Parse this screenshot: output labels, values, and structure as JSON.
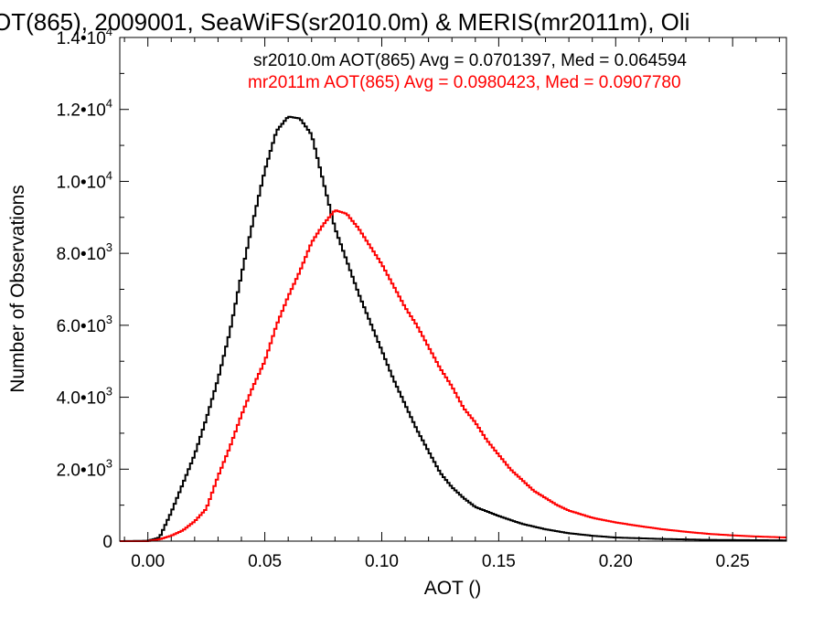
{
  "chart_data": {
    "type": "line",
    "title": "OT(865), 2009001, SeaWiFS(sr2010.0m) & MERIS(mr2011m), Oli",
    "xlabel": "AOT ()",
    "ylabel": "Number of Observations",
    "xlim": [
      -0.012,
      0.273
    ],
    "ylim": [
      0,
      14000
    ],
    "x_ticks": [
      0.0,
      0.05,
      0.1,
      0.15,
      0.2,
      0.25
    ],
    "x_tick_labels": [
      "0.00",
      "0.05",
      "0.10",
      "0.15",
      "0.20",
      "0.25"
    ],
    "y_ticks": [
      0,
      2000,
      4000,
      6000,
      8000,
      10000,
      12000,
      14000
    ],
    "y_tick_labels": [
      {
        "mant": "0",
        "exp": ""
      },
      {
        "mant": "2.0•10",
        "exp": "3"
      },
      {
        "mant": "4.0•10",
        "exp": "3"
      },
      {
        "mant": "6.0•10",
        "exp": "3"
      },
      {
        "mant": "8.0•10",
        "exp": "3"
      },
      {
        "mant": "1.0•10",
        "exp": "4"
      },
      {
        "mant": "1.2•10",
        "exp": "4"
      },
      {
        "mant": "1.4•10",
        "exp": "4"
      }
    ],
    "grid": false,
    "legend_position": "top-right",
    "series": [
      {
        "name": "sr2010.0m",
        "label": "sr2010.0m AOT(865) Avg = 0.0701397, Med = 0.064594",
        "color": "#000000",
        "style": "step",
        "points": [
          [
            -0.012,
            0
          ],
          [
            0.0,
            10
          ],
          [
            0.005,
            100
          ],
          [
            0.01,
            800
          ],
          [
            0.015,
            1600
          ],
          [
            0.02,
            2400
          ],
          [
            0.025,
            3400
          ],
          [
            0.03,
            4500
          ],
          [
            0.035,
            5800
          ],
          [
            0.04,
            7400
          ],
          [
            0.045,
            8900
          ],
          [
            0.05,
            10300
          ],
          [
            0.055,
            11400
          ],
          [
            0.06,
            11800
          ],
          [
            0.065,
            11750
          ],
          [
            0.07,
            11300
          ],
          [
            0.075,
            10000
          ],
          [
            0.08,
            8700
          ],
          [
            0.085,
            7800
          ],
          [
            0.09,
            6900
          ],
          [
            0.095,
            6100
          ],
          [
            0.1,
            5300
          ],
          [
            0.105,
            4500
          ],
          [
            0.11,
            3800
          ],
          [
            0.115,
            3100
          ],
          [
            0.12,
            2500
          ],
          [
            0.125,
            1900
          ],
          [
            0.13,
            1500
          ],
          [
            0.135,
            1200
          ],
          [
            0.14,
            950
          ],
          [
            0.15,
            700
          ],
          [
            0.16,
            480
          ],
          [
            0.17,
            330
          ],
          [
            0.18,
            220
          ],
          [
            0.19,
            150
          ],
          [
            0.2,
            100
          ],
          [
            0.22,
            60
          ],
          [
            0.24,
            35
          ],
          [
            0.273,
            20
          ]
        ]
      },
      {
        "name": "mr2011m",
        "label": "mr2011m AOT(865) Avg = 0.0980423, Med = 0.0907780",
        "color": "#ff0000",
        "style": "step",
        "points": [
          [
            -0.012,
            0
          ],
          [
            0.0,
            0
          ],
          [
            0.005,
            50
          ],
          [
            0.01,
            150
          ],
          [
            0.015,
            300
          ],
          [
            0.02,
            550
          ],
          [
            0.025,
            900
          ],
          [
            0.03,
            1800
          ],
          [
            0.035,
            2600
          ],
          [
            0.04,
            3500
          ],
          [
            0.045,
            4300
          ],
          [
            0.05,
            5000
          ],
          [
            0.055,
            6000
          ],
          [
            0.06,
            6800
          ],
          [
            0.065,
            7500
          ],
          [
            0.07,
            8300
          ],
          [
            0.075,
            8800
          ],
          [
            0.08,
            9200
          ],
          [
            0.085,
            9100
          ],
          [
            0.09,
            8700
          ],
          [
            0.095,
            8200
          ],
          [
            0.1,
            7700
          ],
          [
            0.105,
            7100
          ],
          [
            0.11,
            6500
          ],
          [
            0.115,
            6000
          ],
          [
            0.12,
            5400
          ],
          [
            0.125,
            4800
          ],
          [
            0.13,
            4300
          ],
          [
            0.135,
            3700
          ],
          [
            0.14,
            3300
          ],
          [
            0.145,
            2800
          ],
          [
            0.15,
            2400
          ],
          [
            0.155,
            2000
          ],
          [
            0.16,
            1700
          ],
          [
            0.165,
            1400
          ],
          [
            0.17,
            1200
          ],
          [
            0.175,
            1000
          ],
          [
            0.18,
            850
          ],
          [
            0.19,
            650
          ],
          [
            0.2,
            520
          ],
          [
            0.21,
            420
          ],
          [
            0.22,
            330
          ],
          [
            0.23,
            260
          ],
          [
            0.24,
            200
          ],
          [
            0.25,
            160
          ],
          [
            0.26,
            130
          ],
          [
            0.273,
            100
          ]
        ]
      }
    ]
  }
}
